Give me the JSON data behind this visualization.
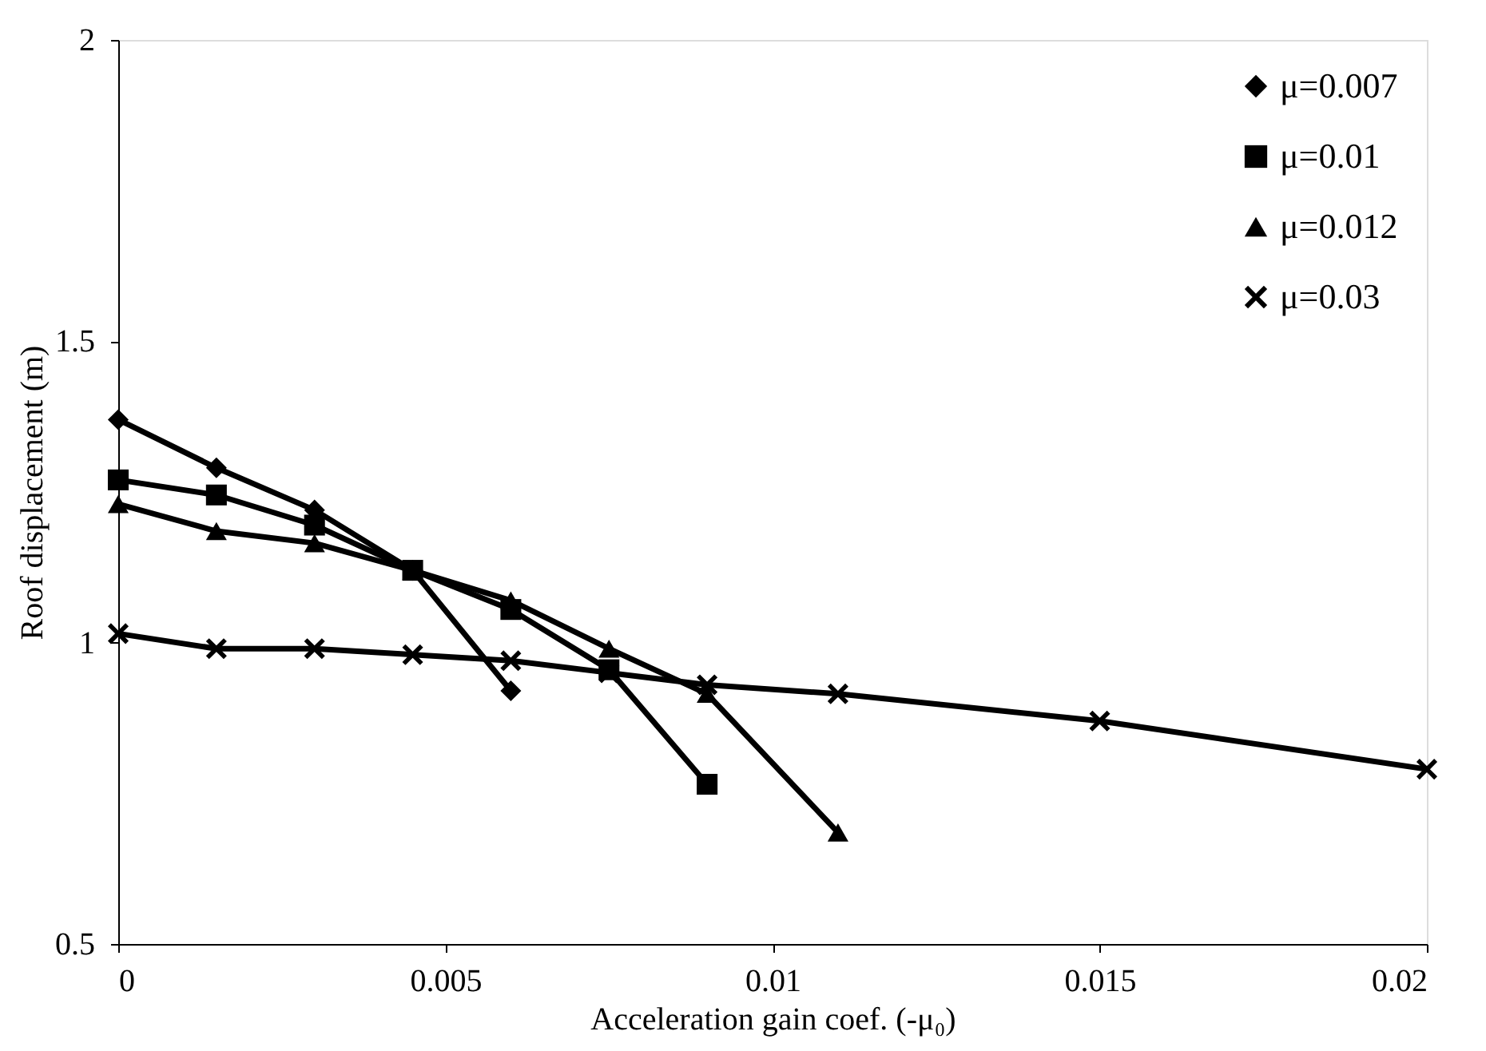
{
  "chart_data": {
    "type": "line",
    "xlabel": "Acceleration gain coef. (-μ₀)",
    "ylabel": "Roof displacement (m)",
    "xlim": [
      0,
      0.02
    ],
    "xticks": [
      0,
      0.005,
      0.01,
      0.015,
      0.02
    ],
    "ylim": [
      0.5,
      2
    ],
    "yticks": [
      0.5,
      1,
      1.5,
      2
    ],
    "grid": false,
    "legend": "top right",
    "line_style": "solid",
    "series": [
      {
        "name": "μ=0.007",
        "color": "#000000",
        "marker": "diamond",
        "x": [
          0,
          0.0015,
          0.003,
          0.0045,
          0.006
        ],
        "values": [
          1.37,
          1.29,
          1.22,
          1.12,
          0.92
        ]
      },
      {
        "name": "μ=0.01",
        "color": "#000000",
        "marker": "square",
        "x": [
          0,
          0.0015,
          0.003,
          0.0045,
          0.006,
          0.0075,
          0.009
        ],
        "values": [
          1.27,
          1.245,
          1.195,
          1.12,
          1.055,
          0.955,
          0.765
        ]
      },
      {
        "name": "μ=0.012",
        "color": "#000000",
        "marker": "triangle",
        "x": [
          0,
          0.0015,
          0.003,
          0.0045,
          0.006,
          0.0075,
          0.009,
          0.011
        ],
        "values": [
          1.23,
          1.185,
          1.165,
          1.12,
          1.07,
          0.99,
          0.915,
          0.685
        ]
      },
      {
        "name": "μ=0.03",
        "color": "#000000",
        "marker": "cross",
        "x": [
          0,
          0.0015,
          0.003,
          0.0045,
          0.006,
          0.0075,
          0.009,
          0.011,
          0.015,
          0.02
        ],
        "values": [
          1.015,
          0.99,
          0.99,
          0.98,
          0.97,
          0.95,
          0.93,
          0.915,
          0.87,
          0.79
        ]
      }
    ]
  }
}
